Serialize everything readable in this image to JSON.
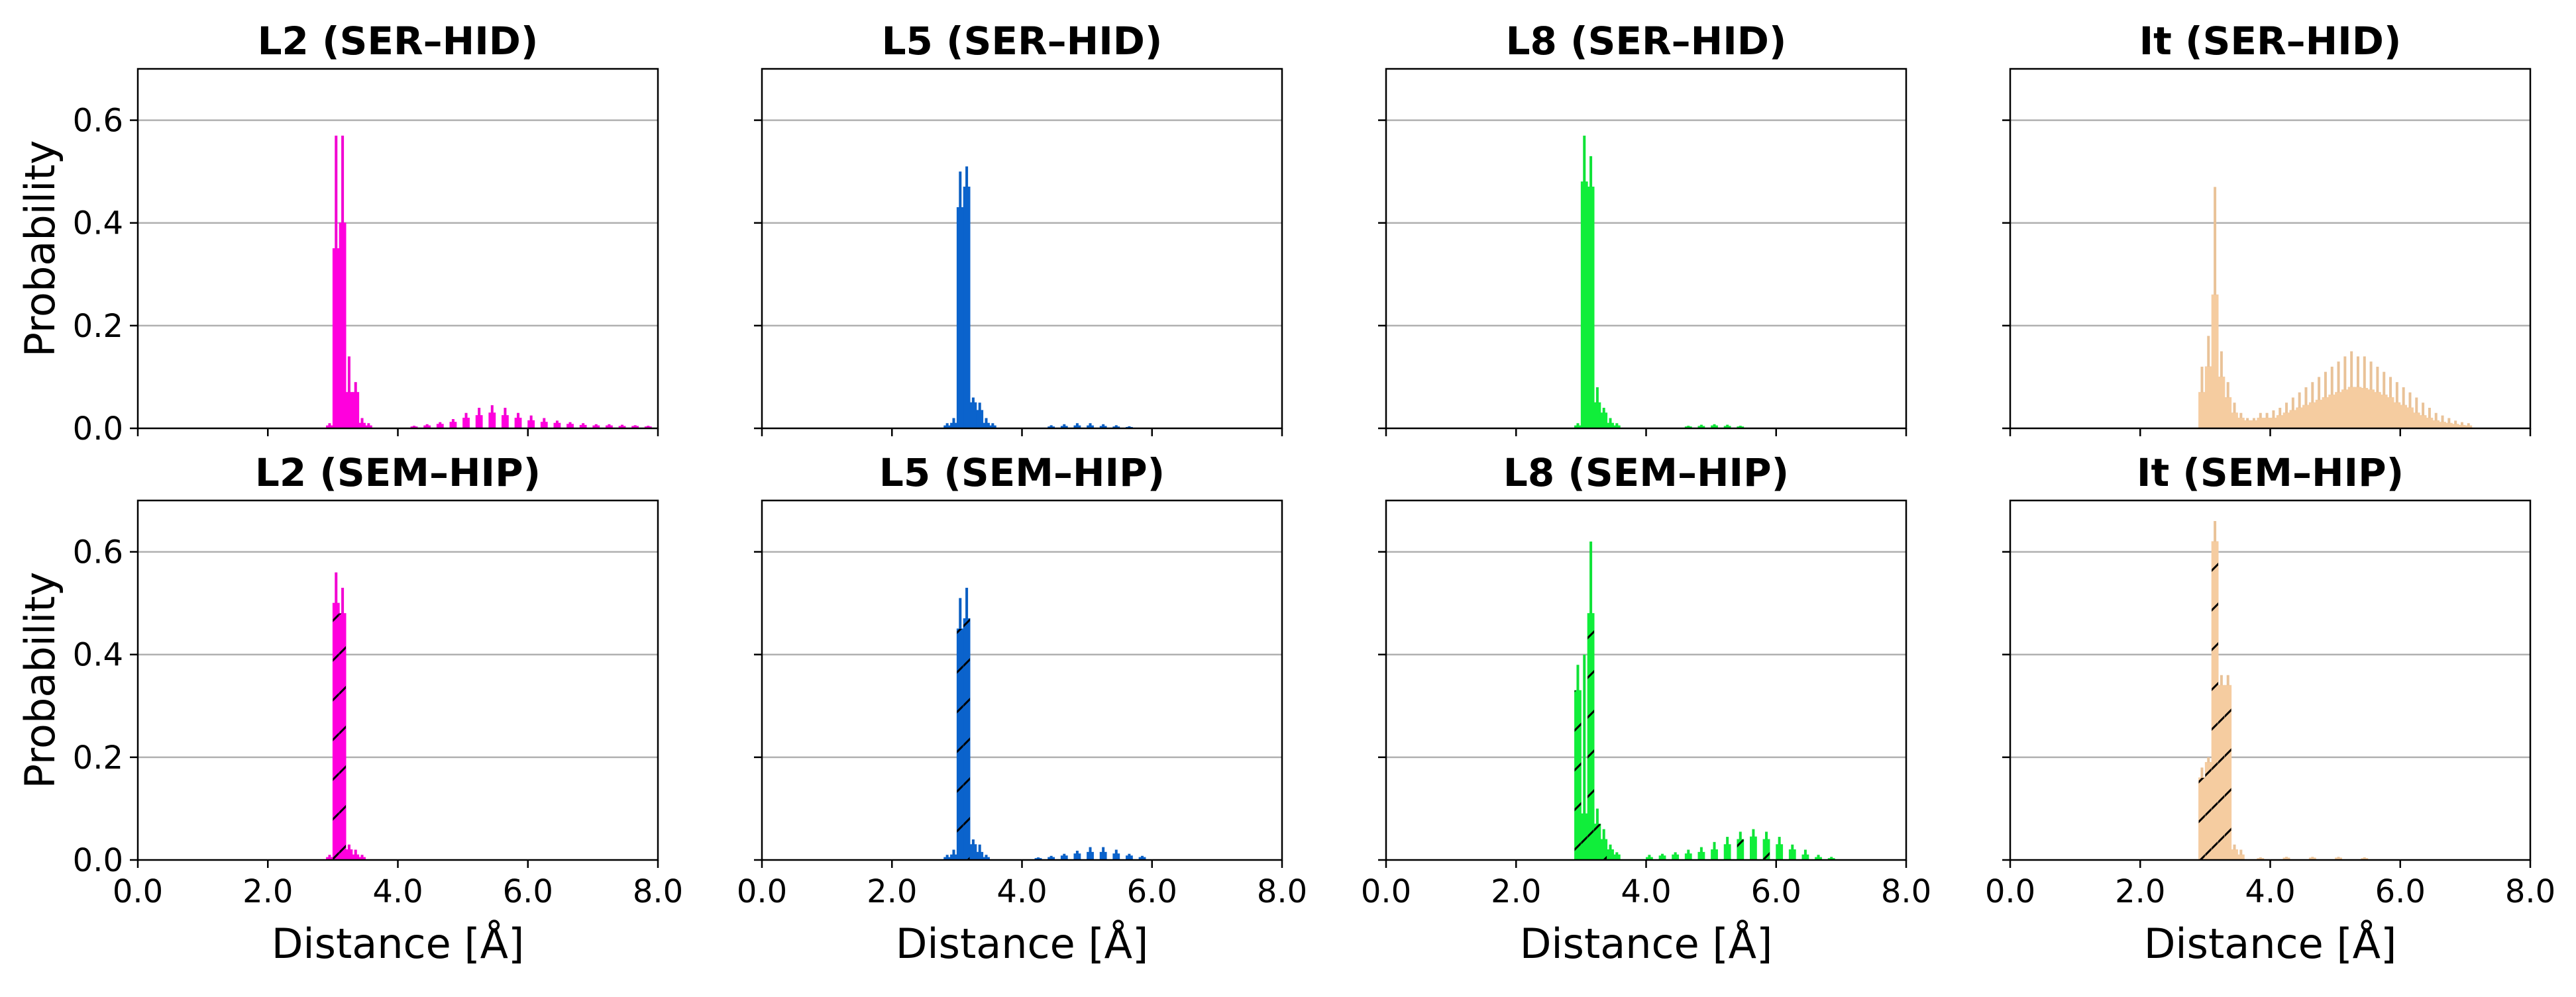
{
  "chart_data": {
    "type": "bar",
    "kind": "histogram",
    "layout": "2x4 grid",
    "xlabel": "Distance [Å]",
    "ylabel": "Probability",
    "xlim": [
      0.0,
      8.0
    ],
    "ylim": [
      0.0,
      0.7
    ],
    "x_ticks": [
      "0.0",
      "2.0",
      "4.0",
      "6.0",
      "8.0"
    ],
    "y_ticks": [
      "0.0",
      "0.2",
      "0.4",
      "0.6"
    ],
    "grid": "horizontal",
    "bin_width": 0.1,
    "colors": {
      "L2": "#ff00dd",
      "L5": "#0b63cc",
      "L8": "#10ee3a",
      "It": "#f5cca0"
    },
    "panels": [
      {
        "title": "L2 (SER–HID)",
        "system": "L2",
        "hatched": false,
        "bins": [
          [
            2.9,
            0.005,
            0.01
          ],
          [
            3.0,
            0.35,
            0.57
          ],
          [
            3.1,
            0.4,
            0.57
          ],
          [
            3.2,
            0.07,
            0.14
          ],
          [
            3.3,
            0.07,
            0.09
          ],
          [
            3.4,
            0.01,
            0.02
          ],
          [
            3.5,
            0.005,
            0.01
          ],
          [
            4.2,
            0.003,
            0.005
          ],
          [
            4.4,
            0.005,
            0.008
          ],
          [
            4.6,
            0.008,
            0.012
          ],
          [
            4.8,
            0.012,
            0.018
          ],
          [
            5.0,
            0.02,
            0.03
          ],
          [
            5.2,
            0.025,
            0.04
          ],
          [
            5.4,
            0.03,
            0.045
          ],
          [
            5.6,
            0.025,
            0.04
          ],
          [
            5.8,
            0.02,
            0.03
          ],
          [
            6.0,
            0.015,
            0.025
          ],
          [
            6.2,
            0.012,
            0.02
          ],
          [
            6.4,
            0.01,
            0.015
          ],
          [
            6.6,
            0.008,
            0.012
          ],
          [
            6.8,
            0.006,
            0.01
          ],
          [
            7.0,
            0.005,
            0.008
          ],
          [
            7.2,
            0.005,
            0.008
          ],
          [
            7.4,
            0.004,
            0.007
          ],
          [
            7.6,
            0.004,
            0.006
          ],
          [
            7.8,
            0.003,
            0.005
          ]
        ]
      },
      {
        "title": "L5 (SER–HID)",
        "system": "L5",
        "hatched": false,
        "bins": [
          [
            2.8,
            0.005,
            0.01
          ],
          [
            2.9,
            0.01,
            0.02
          ],
          [
            3.0,
            0.43,
            0.5
          ],
          [
            3.1,
            0.47,
            0.51
          ],
          [
            3.2,
            0.05,
            0.06
          ],
          [
            3.3,
            0.035,
            0.05
          ],
          [
            3.4,
            0.01,
            0.02
          ],
          [
            3.5,
            0.005,
            0.01
          ],
          [
            4.4,
            0.003,
            0.006
          ],
          [
            4.6,
            0.004,
            0.008
          ],
          [
            4.8,
            0.005,
            0.01
          ],
          [
            5.0,
            0.005,
            0.01
          ],
          [
            5.2,
            0.004,
            0.008
          ],
          [
            5.4,
            0.003,
            0.006
          ],
          [
            5.6,
            0.002,
            0.004
          ]
        ]
      },
      {
        "title": "L8 (SER–HID)",
        "system": "L8",
        "hatched": false,
        "bins": [
          [
            2.9,
            0.005,
            0.01
          ],
          [
            3.0,
            0.48,
            0.57
          ],
          [
            3.1,
            0.47,
            0.53
          ],
          [
            3.2,
            0.05,
            0.08
          ],
          [
            3.3,
            0.03,
            0.04
          ],
          [
            3.4,
            0.01,
            0.02
          ],
          [
            3.5,
            0.005,
            0.01
          ],
          [
            4.6,
            0.003,
            0.005
          ],
          [
            4.8,
            0.004,
            0.007
          ],
          [
            5.0,
            0.005,
            0.008
          ],
          [
            5.2,
            0.004,
            0.007
          ],
          [
            5.4,
            0.003,
            0.005
          ]
        ]
      },
      {
        "title": "It (SER–HID)",
        "system": "It",
        "hatched": false,
        "bins": [
          [
            2.9,
            0.07,
            0.12
          ],
          [
            3.0,
            0.12,
            0.18
          ],
          [
            3.1,
            0.26,
            0.47
          ],
          [
            3.2,
            0.1,
            0.15
          ],
          [
            3.3,
            0.06,
            0.09
          ],
          [
            3.4,
            0.03,
            0.05
          ],
          [
            3.5,
            0.02,
            0.03
          ],
          [
            3.6,
            0.015,
            0.02
          ],
          [
            3.7,
            0.015,
            0.02
          ],
          [
            3.8,
            0.02,
            0.03
          ],
          [
            3.9,
            0.02,
            0.03
          ],
          [
            4.0,
            0.02,
            0.035
          ],
          [
            4.1,
            0.025,
            0.04
          ],
          [
            4.2,
            0.03,
            0.05
          ],
          [
            4.3,
            0.035,
            0.06
          ],
          [
            4.4,
            0.04,
            0.07
          ],
          [
            4.5,
            0.045,
            0.08
          ],
          [
            4.6,
            0.05,
            0.09
          ],
          [
            4.7,
            0.055,
            0.1
          ],
          [
            4.8,
            0.06,
            0.11
          ],
          [
            4.9,
            0.065,
            0.12
          ],
          [
            5.0,
            0.07,
            0.13
          ],
          [
            5.1,
            0.075,
            0.14
          ],
          [
            5.2,
            0.08,
            0.15
          ],
          [
            5.3,
            0.08,
            0.14
          ],
          [
            5.4,
            0.078,
            0.14
          ],
          [
            5.5,
            0.075,
            0.13
          ],
          [
            5.6,
            0.07,
            0.12
          ],
          [
            5.7,
            0.065,
            0.11
          ],
          [
            5.8,
            0.06,
            0.1
          ],
          [
            5.9,
            0.05,
            0.09
          ],
          [
            6.0,
            0.045,
            0.08
          ],
          [
            6.1,
            0.04,
            0.07
          ],
          [
            6.2,
            0.03,
            0.06
          ],
          [
            6.3,
            0.025,
            0.05
          ],
          [
            6.4,
            0.02,
            0.04
          ],
          [
            6.5,
            0.015,
            0.03
          ],
          [
            6.6,
            0.012,
            0.025
          ],
          [
            6.7,
            0.01,
            0.02
          ],
          [
            6.8,
            0.008,
            0.015
          ],
          [
            6.9,
            0.006,
            0.012
          ],
          [
            7.0,
            0.005,
            0.01
          ]
        ]
      },
      {
        "title": "L2 (SEM–HIP)",
        "system": "L2",
        "hatched": true,
        "bins": [
          [
            2.9,
            0.005,
            0.01
          ],
          [
            3.0,
            0.5,
            0.56
          ],
          [
            3.1,
            0.48,
            0.53
          ],
          [
            3.2,
            0.02,
            0.03
          ],
          [
            3.3,
            0.01,
            0.02
          ],
          [
            3.4,
            0.005,
            0.01
          ]
        ]
      },
      {
        "title": "L5 (SEM–HIP)",
        "system": "L5",
        "hatched": true,
        "bins": [
          [
            2.8,
            0.005,
            0.01
          ],
          [
            2.9,
            0.01,
            0.02
          ],
          [
            3.0,
            0.45,
            0.51
          ],
          [
            3.1,
            0.47,
            0.53
          ],
          [
            3.2,
            0.03,
            0.04
          ],
          [
            3.3,
            0.015,
            0.03
          ],
          [
            3.4,
            0.005,
            0.01
          ],
          [
            4.2,
            0.003,
            0.005
          ],
          [
            4.4,
            0.005,
            0.008
          ],
          [
            4.6,
            0.008,
            0.012
          ],
          [
            4.8,
            0.012,
            0.018
          ],
          [
            5.0,
            0.015,
            0.025
          ],
          [
            5.2,
            0.015,
            0.025
          ],
          [
            5.4,
            0.012,
            0.02
          ],
          [
            5.6,
            0.008,
            0.012
          ],
          [
            5.8,
            0.005,
            0.008
          ]
        ]
      },
      {
        "title": "L8 (SEM–HIP)",
        "system": "L8",
        "hatched": true,
        "bins": [
          [
            2.9,
            0.33,
            0.38
          ],
          [
            3.0,
            0.09,
            0.4
          ],
          [
            3.1,
            0.48,
            0.62
          ],
          [
            3.2,
            0.07,
            0.1
          ],
          [
            3.3,
            0.04,
            0.06
          ],
          [
            3.4,
            0.02,
            0.03
          ],
          [
            3.5,
            0.01,
            0.015
          ],
          [
            4.0,
            0.005,
            0.01
          ],
          [
            4.2,
            0.008,
            0.012
          ],
          [
            4.4,
            0.01,
            0.015
          ],
          [
            4.6,
            0.012,
            0.02
          ],
          [
            4.8,
            0.015,
            0.025
          ],
          [
            5.0,
            0.02,
            0.035
          ],
          [
            5.2,
            0.03,
            0.045
          ],
          [
            5.4,
            0.04,
            0.055
          ],
          [
            5.6,
            0.045,
            0.06
          ],
          [
            5.8,
            0.04,
            0.055
          ],
          [
            6.0,
            0.03,
            0.045
          ],
          [
            6.2,
            0.02,
            0.03
          ],
          [
            6.4,
            0.01,
            0.02
          ],
          [
            6.6,
            0.005,
            0.01
          ],
          [
            6.8,
            0.003,
            0.006
          ]
        ]
      },
      {
        "title": "It (SEM–HIP)",
        "system": "It",
        "hatched": true,
        "bins": [
          [
            2.9,
            0.16,
            0.18
          ],
          [
            3.0,
            0.19,
            0.2
          ],
          [
            3.1,
            0.62,
            0.66
          ],
          [
            3.2,
            0.34,
            0.36
          ],
          [
            3.3,
            0.34,
            0.36
          ],
          [
            3.4,
            0.02,
            0.03
          ],
          [
            3.5,
            0.01,
            0.02
          ],
          [
            3.8,
            0.003,
            0.005
          ],
          [
            4.2,
            0.004,
            0.006
          ],
          [
            4.6,
            0.004,
            0.006
          ],
          [
            5.0,
            0.004,
            0.006
          ],
          [
            5.4,
            0.003,
            0.005
          ]
        ]
      }
    ]
  }
}
